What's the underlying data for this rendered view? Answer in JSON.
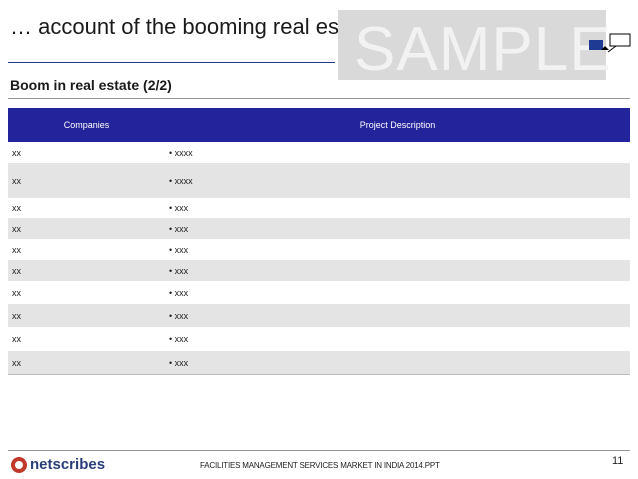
{
  "header": {
    "title": "… account of the booming real estate sector",
    "watermark": "SAMPLE",
    "subtitle": "Boom in real estate (2/2)"
  },
  "table": {
    "columns": [
      "Companies",
      "Project Description"
    ],
    "rows": [
      [
        "xx",
        "xxxx"
      ],
      [
        "xx",
        "xxxx"
      ],
      [
        "xx",
        "xxx"
      ],
      [
        "xx",
        "xxx"
      ],
      [
        "xx",
        "xxx"
      ],
      [
        "xx",
        "xxx"
      ],
      [
        "xx",
        "xxx"
      ],
      [
        "xx",
        "xxx"
      ],
      [
        "xx",
        "xxx"
      ],
      [
        "xx",
        "xxx"
      ]
    ]
  },
  "footer": {
    "logo": "netscribes",
    "document": "FACILITIES MANAGEMENT SERVICES MARKET IN INDIA 2014.PPT",
    "page": "11"
  }
}
